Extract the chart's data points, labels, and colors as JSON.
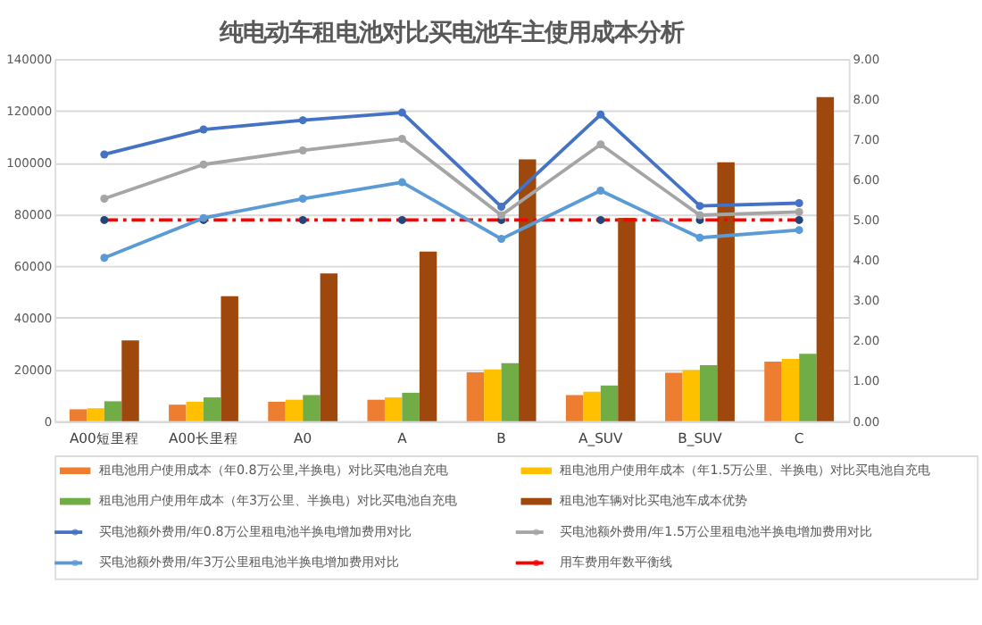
{
  "chart_data": {
    "type": "bar",
    "title": "纯电动车租电池对比买电池车主使用成本分析",
    "categories": [
      "A00短里程",
      "A00长里程",
      "A0",
      "A",
      "B",
      "A_SUV",
      "B_SUV",
      "C"
    ],
    "series": [
      {
        "name": "租电池用户使用成本（年0.8万公里,半换电）对比买电池自充电",
        "color": "#ed7d31",
        "values": [
          4600,
          6400,
          7500,
          8300,
          18900,
          10100,
          18700,
          23000
        ]
      },
      {
        "name": "租电池用户使用年成本（年1.5万公里、半换电）对比买电池自充电",
        "color": "#ffc000",
        "values": [
          5000,
          7500,
          8300,
          9200,
          20000,
          11400,
          19800,
          24100
        ]
      },
      {
        "name": "租电池用户使用年成本（年3万公里、半换电）对比买电池自充电",
        "color": "#70ad47",
        "values": [
          7700,
          9200,
          10100,
          11000,
          22400,
          13800,
          21700,
          26100
        ]
      },
      {
        "name": "租电池车辆对比买电池车成本优势",
        "color": "#9e480e",
        "values": [
          31200,
          48300,
          57100,
          65600,
          101200,
          78600,
          100100,
          125300
        ]
      },
      {
        "name": "买电池额外费用/年0.8万公里租电池半换电增加费用对比",
        "type": "line",
        "axis": "y2",
        "color": "#4472c4",
        "values": [
          6.63,
          7.25,
          7.48,
          7.67,
          5.33,
          7.62,
          5.35,
          5.42
        ]
      },
      {
        "name": "买电池额外费用/年1.5万公里租电池半换电增加费用对比",
        "type": "line",
        "axis": "y2",
        "color": "#a5a5a5",
        "values": [
          5.53,
          6.38,
          6.73,
          7.02,
          5.12,
          6.88,
          5.12,
          5.2
        ]
      },
      {
        "name": "买电池额外费用/年3万公里租电池半换电增加费用对比",
        "type": "line",
        "axis": "y2",
        "color": "#5b9bd5",
        "values": [
          4.06,
          5.05,
          5.53,
          5.94,
          4.53,
          5.73,
          4.56,
          4.75
        ]
      },
      {
        "name": "用车费用年数平衡线",
        "type": "line",
        "axis": "y2",
        "color": "#ff0000",
        "line_style": "dashed",
        "values": [
          5,
          5,
          5,
          5,
          5,
          5,
          5,
          5
        ]
      }
    ],
    "ylim": [
      0,
      140000
    ],
    "yticks": [
      0,
      20000,
      40000,
      60000,
      80000,
      100000,
      120000,
      140000
    ],
    "y2lim": [
      0,
      9
    ],
    "y2ticks": [
      {
        "value": 0,
        "label": "0.00"
      },
      {
        "value": 1,
        "label": "1.00"
      },
      {
        "value": 2,
        "label": "2.00"
      },
      {
        "value": 3,
        "label": "3.00"
      },
      {
        "value": 4,
        "label": "4.00"
      },
      {
        "value": 5,
        "label": "5.00"
      },
      {
        "value": 6,
        "label": "6.00"
      },
      {
        "value": 7,
        "label": "7.00"
      },
      {
        "value": 8,
        "label": "8.00"
      },
      {
        "value": 9,
        "label": "9.00"
      }
    ],
    "grid": "y",
    "legend": "bottom",
    "marker": "circle"
  }
}
